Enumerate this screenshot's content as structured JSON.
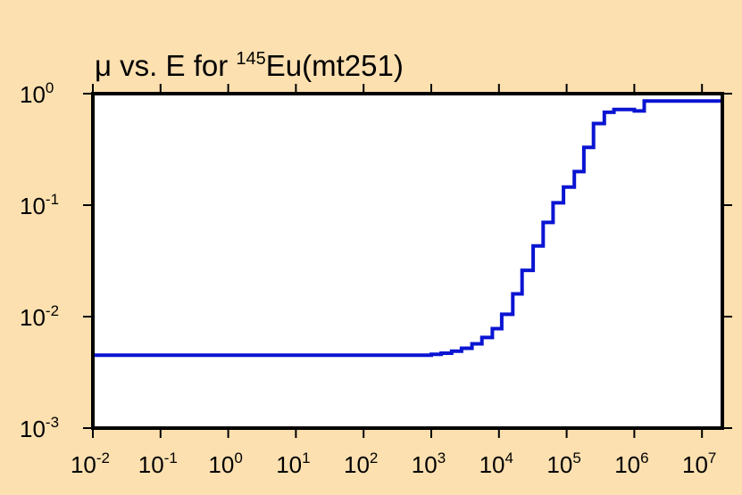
{
  "chart_data": {
    "type": "line",
    "step": true,
    "title": {
      "prefix": "μ vs. E for ",
      "mass_number": "145",
      "suffix": "Eu(mt251)"
    },
    "xlabel": "",
    "ylabel": "",
    "x_scale": "log",
    "y_scale": "log",
    "xlim": [
      0.01,
      20000000
    ],
    "ylim": [
      0.001,
      1
    ],
    "x_ticks": [
      {
        "base": "10",
        "exp": "-2",
        "value": 0.01
      },
      {
        "base": "10",
        "exp": "-1",
        "value": 0.1
      },
      {
        "base": "10",
        "exp": "0",
        "value": 1
      },
      {
        "base": "10",
        "exp": "1",
        "value": 10
      },
      {
        "base": "10",
        "exp": "2",
        "value": 100
      },
      {
        "base": "10",
        "exp": "3",
        "value": 1000
      },
      {
        "base": "10",
        "exp": "4",
        "value": 10000
      },
      {
        "base": "10",
        "exp": "5",
        "value": 100000
      },
      {
        "base": "10",
        "exp": "6",
        "value": 1000000
      },
      {
        "base": "10",
        "exp": "7",
        "value": 10000000
      }
    ],
    "y_ticks": [
      {
        "base": "10",
        "exp": "0",
        "value": 1
      },
      {
        "base": "10",
        "exp": "-1",
        "value": 0.1
      },
      {
        "base": "10",
        "exp": "-2",
        "value": 0.01
      },
      {
        "base": "10",
        "exp": "-3",
        "value": 0.001
      }
    ],
    "grid": false,
    "legend": "none",
    "colors": {
      "background": "#fce0b0",
      "plot_area": "#ffffff",
      "series": "#0a14d2",
      "axis": "#000000"
    },
    "series": [
      {
        "x": [
          0.01,
          1000,
          1400,
          2000,
          2800,
          4000,
          5600,
          8000,
          11000,
          16000,
          22000,
          32000,
          45000,
          63000,
          90000,
          130000,
          180000,
          250000,
          360000,
          500000,
          710000,
          1000000,
          1400000,
          2000000,
          2800000,
          4000000,
          5600000,
          8000000,
          11000000,
          20000000
        ],
        "y": [
          0.0045,
          0.0046,
          0.0047,
          0.0049,
          0.0052,
          0.0057,
          0.0065,
          0.0078,
          0.0105,
          0.016,
          0.026,
          0.043,
          0.07,
          0.105,
          0.145,
          0.2,
          0.33,
          0.54,
          0.68,
          0.72,
          0.72,
          0.7,
          0.86,
          0.86,
          0.86,
          0.86,
          0.86,
          0.86,
          0.86,
          0.86
        ]
      }
    ]
  }
}
